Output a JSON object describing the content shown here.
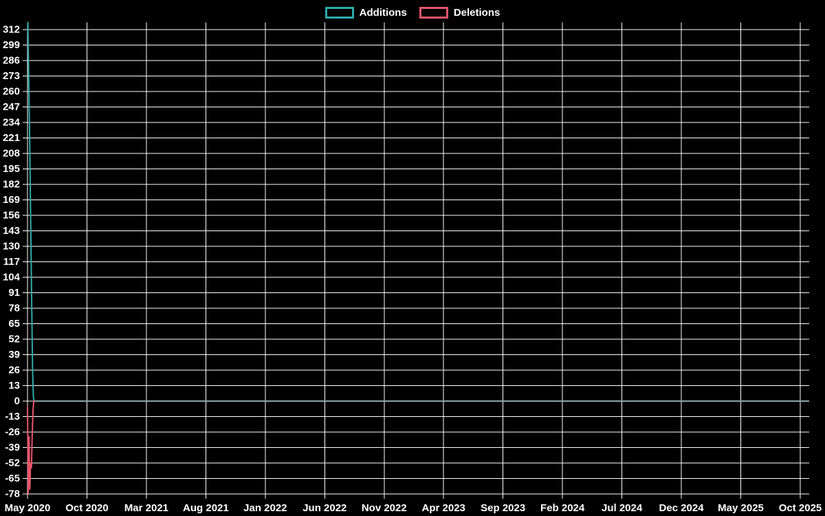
{
  "chart_data": {
    "type": "line",
    "title": "",
    "background_color": "#000000",
    "grid_color": "#ffffff",
    "text_color": "#ffffff",
    "zero_overlap_color": "#88A5A9",
    "legend_position": "top-center",
    "x_axis": {
      "label": "",
      "tick_labels": [
        "May 2020",
        "Oct 2020",
        "Mar 2021",
        "Aug 2021",
        "Jan 2022",
        "Jun 2022",
        "Nov 2022",
        "Apr 2023",
        "Sep 2023",
        "Feb 2024",
        "Jul 2024",
        "Dec 2024",
        "May 2025",
        "Oct 2025"
      ],
      "tick_day_offsets": [
        0,
        153,
        304,
        457,
        610,
        761,
        914,
        1065,
        1218,
        1371,
        1522,
        1675,
        1826,
        1979
      ],
      "domain_days": [
        0,
        2000
      ]
    },
    "y_axis": {
      "label": "",
      "tick_min": -78,
      "tick_max": 312,
      "tick_step": 13,
      "domain": [
        -80,
        318
      ]
    },
    "series": [
      {
        "name": "Additions",
        "color": "#2FAAAA",
        "points": [
          [
            1,
            318
          ],
          [
            3,
            273
          ],
          [
            5,
            234
          ],
          [
            7,
            182
          ],
          [
            9,
            130
          ],
          [
            11,
            78
          ],
          [
            13,
            26
          ],
          [
            15,
            4
          ],
          [
            17,
            0
          ],
          [
            2000,
            0
          ]
        ]
      },
      {
        "name": "Deletions",
        "color": "#E8566B",
        "points": [
          [
            0,
            -5
          ],
          [
            2,
            -78
          ],
          [
            4,
            -30
          ],
          [
            6,
            -74
          ],
          [
            8,
            -52
          ],
          [
            10,
            -56
          ],
          [
            12,
            -30
          ],
          [
            14,
            -8
          ],
          [
            16,
            0
          ],
          [
            2000,
            0
          ]
        ]
      }
    ]
  }
}
